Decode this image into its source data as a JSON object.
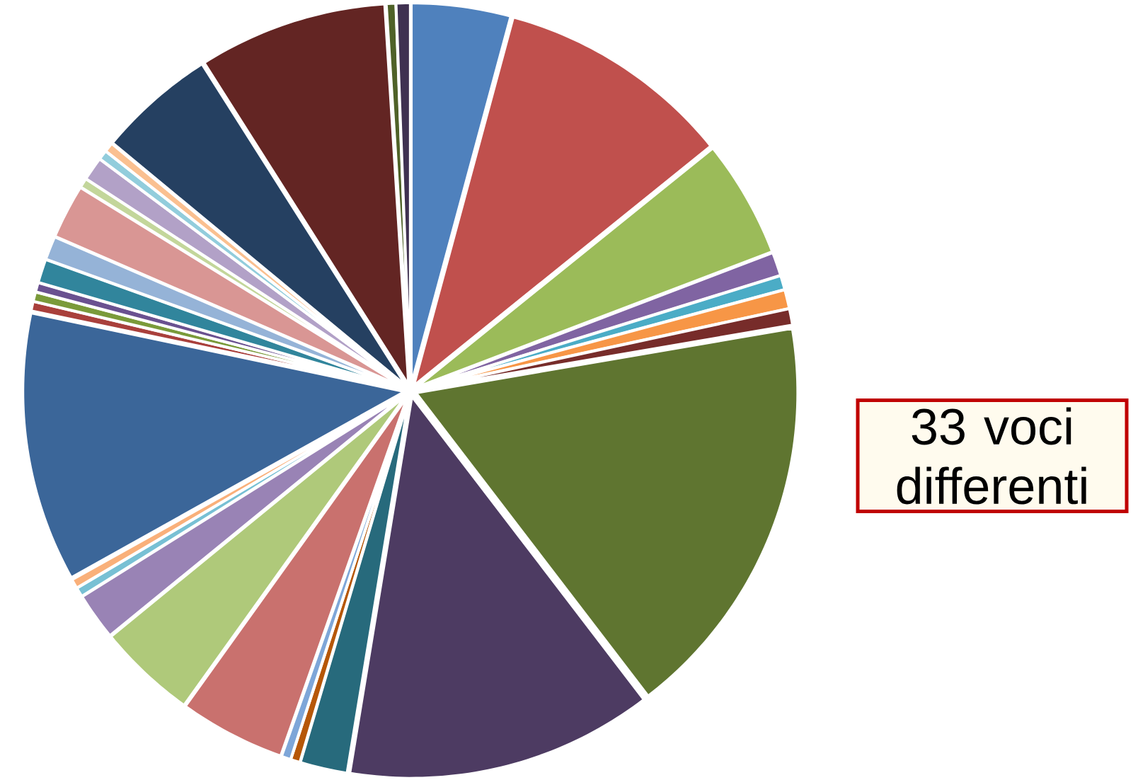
{
  "chart_data": {
    "type": "pie",
    "categories": [
      null,
      null,
      null,
      null,
      null,
      null,
      null,
      null,
      null,
      null,
      null,
      null,
      null,
      null,
      null,
      null,
      null,
      null,
      null,
      null,
      null,
      null,
      null,
      null,
      null,
      null,
      null,
      null,
      null,
      null,
      null,
      null
    ],
    "values": [
      4.2,
      10,
      5,
      1,
      0.6,
      0.8,
      0.7,
      17.3,
      13,
      2,
      0.4,
      0.4,
      4.5,
      4.2,
      2,
      0.4,
      0.4,
      11.4,
      0.4,
      0.4,
      0.4,
      1,
      1,
      2.3,
      0.4,
      1,
      0.4,
      0.4,
      5,
      8,
      0.4,
      0.6
    ],
    "colors": [
      "#4f81bd",
      "#c0504d",
      "#9bbb59",
      "#8064a2",
      "#4bacc6",
      "#f79646",
      "#772c2a",
      "#5f7530",
      "#4d3b62",
      "#276a7c",
      "#b65708",
      "#7ea6d8",
      "#c9716e",
      "#afc97a",
      "#9983b5",
      "#78c0d4",
      "#f9b07a",
      "#3b6699",
      "#a9403c",
      "#7a9a3a",
      "#6a5190",
      "#31859c",
      "#95b3d7",
      "#d99694",
      "#c3d69b",
      "#b2a1c7",
      "#92cddc",
      "#fac090",
      "#254061",
      "#632523",
      "#4f6228",
      "#3f3151"
    ],
    "annotations": [
      "33 voci differenti"
    ]
  }
}
